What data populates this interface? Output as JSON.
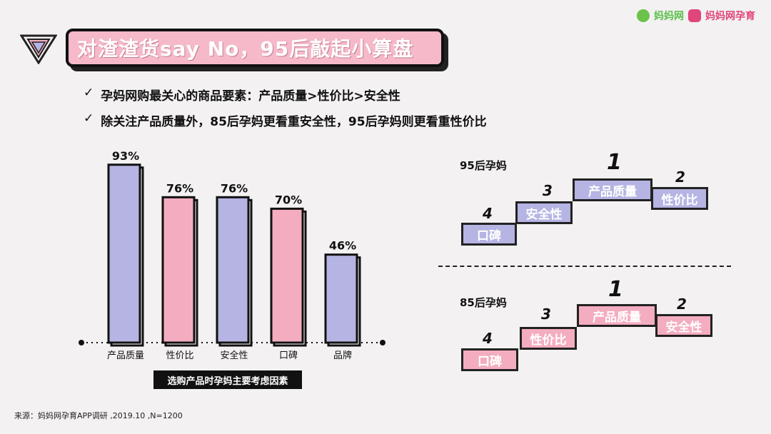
{
  "brand": {
    "name_1": "妈妈网",
    "name_2": "妈妈网孕育"
  },
  "title": "对渣渣货say No，95后敲起小算盘",
  "bullets": [
    "孕妈网购最关心的商品要素：产品质量>性价比>安全性",
    "除关注产品质量外，85后孕妈更看重安全性，95后孕妈则更看重性价比"
  ],
  "bullet_mark": "✓",
  "chart_data": {
    "type": "bar",
    "categories": [
      "产品质量",
      "性价比",
      "安全性",
      "口碑",
      "品牌"
    ],
    "values": [
      93,
      76,
      76,
      70,
      46
    ],
    "value_labels": [
      "93%",
      "76%",
      "76%",
      "70%",
      "46%"
    ],
    "bar_colors": [
      "#b5b4e3",
      "#f4adc0",
      "#b5b4e3",
      "#f4adc0",
      "#b5b4e3"
    ],
    "xlabel": "选购产品时孕妈主要考虑因素",
    "ylim": [
      0,
      100
    ]
  },
  "ranking": {
    "group_95": {
      "label": "95后孕妈",
      "steps": [
        {
          "rank": "1",
          "label": "产品质量"
        },
        {
          "rank": "2",
          "label": "性价比"
        },
        {
          "rank": "3",
          "label": "安全性"
        },
        {
          "rank": "4",
          "label": "口碑"
        }
      ]
    },
    "group_85": {
      "label": "85后孕妈",
      "steps": [
        {
          "rank": "1",
          "label": "产品质量"
        },
        {
          "rank": "2",
          "label": "安全性"
        },
        {
          "rank": "3",
          "label": "性价比"
        },
        {
          "rank": "4",
          "label": "口碑"
        }
      ]
    }
  },
  "source_note": "来源：妈妈网孕育APP调研 ,2019.10 ,N=1200",
  "colors": {
    "blue": "#b5b4e3",
    "pink": "#f4adc0",
    "dark": "#111111"
  }
}
